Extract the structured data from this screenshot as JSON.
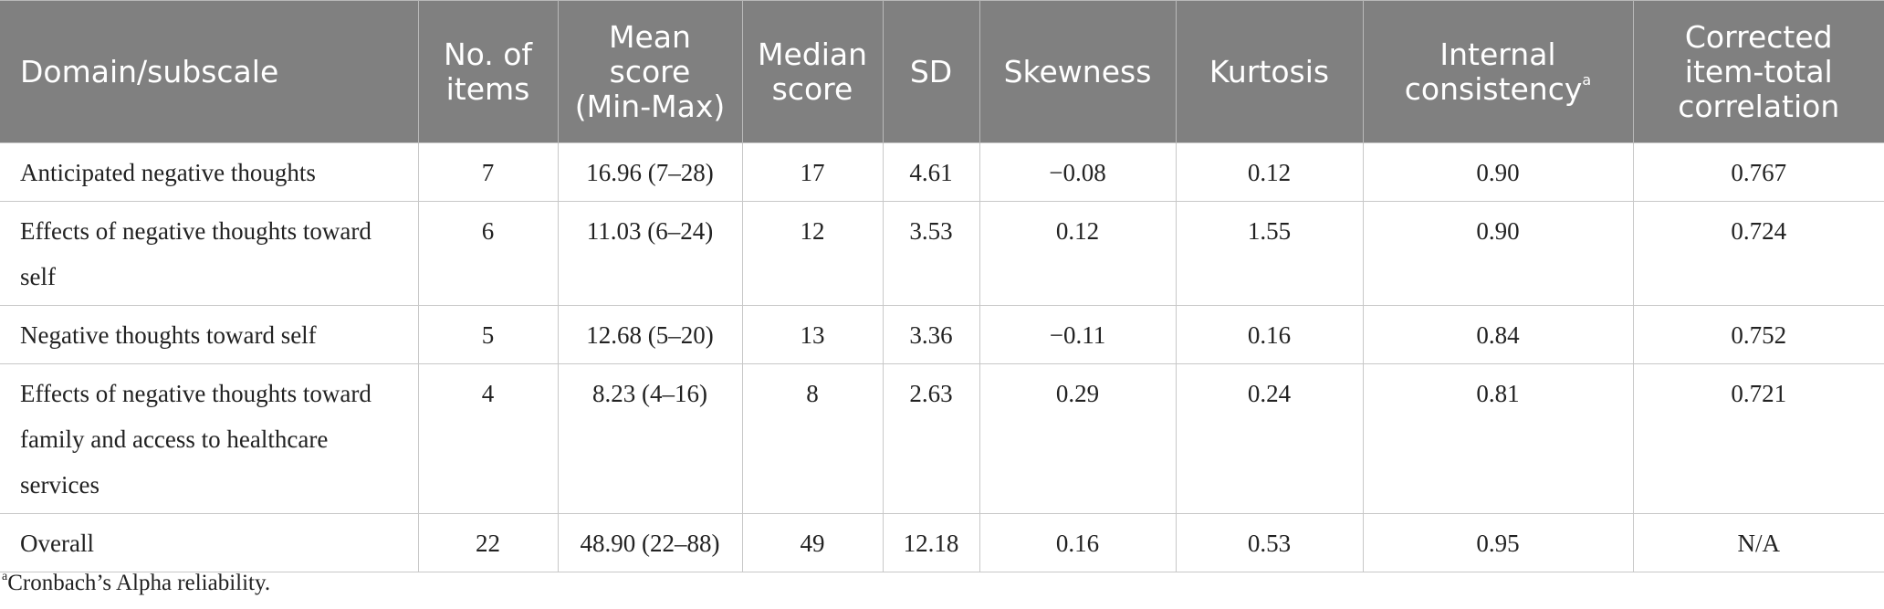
{
  "table": {
    "headers": [
      {
        "label": "Domain/subscale",
        "sup": ""
      },
      {
        "label": "No. of items",
        "sup": ""
      },
      {
        "label": "Mean score (Min-Max)",
        "sup": ""
      },
      {
        "label": "Median score",
        "sup": ""
      },
      {
        "label": "SD",
        "sup": ""
      },
      {
        "label": "Skewness",
        "sup": ""
      },
      {
        "label": "Kurtosis",
        "sup": ""
      },
      {
        "label": "Internal consistency",
        "sup": "a"
      },
      {
        "label": "Corrected item-total correlation",
        "sup": ""
      }
    ],
    "rows": [
      [
        "Anticipated negative thoughts",
        "7",
        "16.96 (7–28)",
        "17",
        "4.61",
        "−0.08",
        "0.12",
        "0.90",
        "0.767"
      ],
      [
        "Effects of negative thoughts toward self",
        "6",
        "11.03 (6–24)",
        "12",
        "3.53",
        "0.12",
        "1.55",
        "0.90",
        "0.724"
      ],
      [
        "Negative thoughts toward self",
        "5",
        "12.68 (5–20)",
        "13",
        "3.36",
        "−0.11",
        "0.16",
        "0.84",
        "0.752"
      ],
      [
        "Effects of negative thoughts toward family and access to healthcare services",
        "4",
        "8.23 (4–16)",
        "8",
        "2.63",
        "0.29",
        "0.24",
        "0.81",
        "0.721"
      ],
      [
        "Overall",
        "22",
        "48.90 (22–88)",
        "49",
        "12.18",
        "0.16",
        "0.53",
        "0.95",
        "N/A"
      ]
    ]
  },
  "footnote": {
    "marker": "a",
    "text": "Cronbach’s Alpha reliability."
  },
  "colors": {
    "header_bg": "#808080",
    "header_text": "#ffffff",
    "grid": "#c8c8c8"
  }
}
